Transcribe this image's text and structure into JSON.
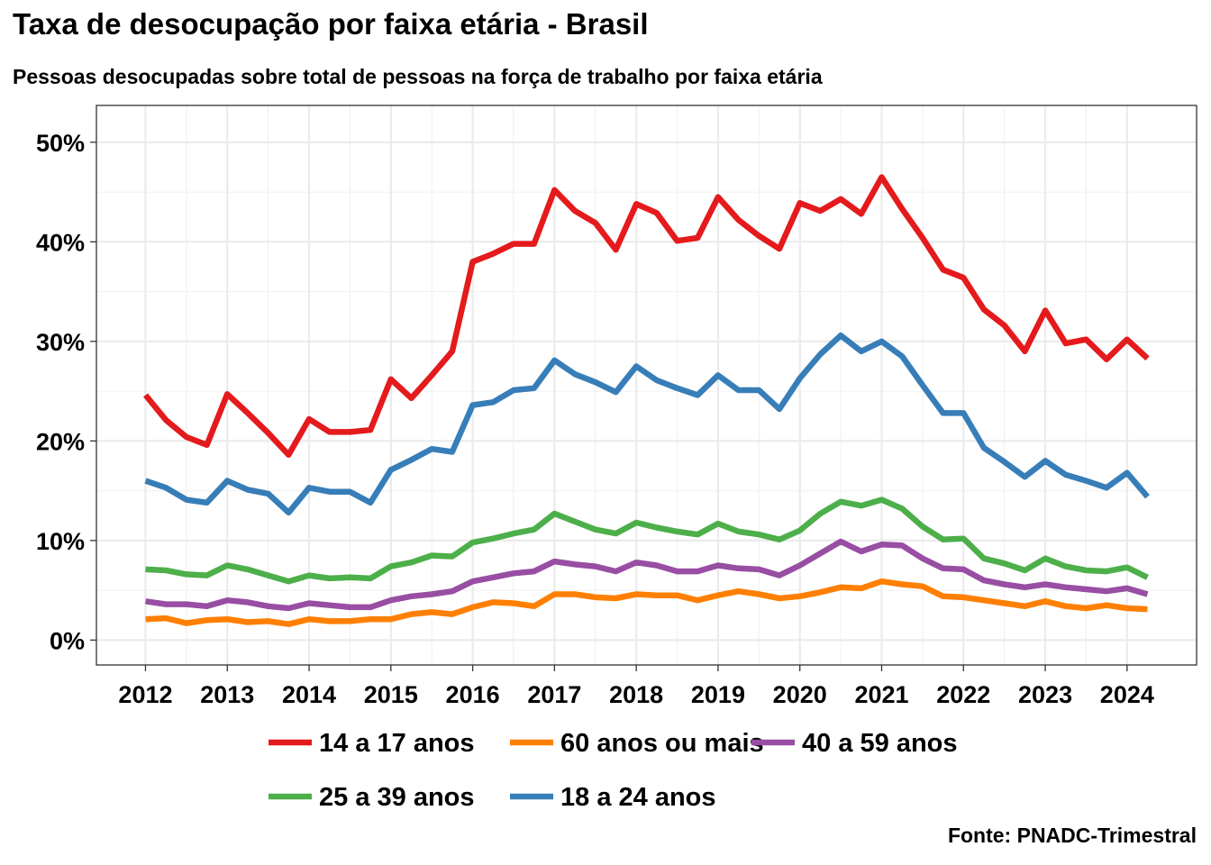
{
  "title": "Taxa de desocupação por faixa etária - Brasil",
  "subtitle": "Pessoas desocupadas sobre total de pessoas na força de trabalho por faixa etária",
  "caption": "Fonte: PNADC-Trimestral",
  "chart_data": {
    "type": "line",
    "title": "Taxa de desocupação por faixa etária - Brasil",
    "subtitle": "Pessoas desocupadas sobre total de pessoas na força de trabalho por faixa etária",
    "xlabel": "",
    "ylabel": "",
    "x_ticks": [
      "2012",
      "2013",
      "2014",
      "2015",
      "2016",
      "2017",
      "2018",
      "2019",
      "2020",
      "2021",
      "2022",
      "2023",
      "2024"
    ],
    "y_ticks": [
      "0%",
      "10%",
      "20%",
      "30%",
      "40%",
      "50%"
    ],
    "xlim": [
      2011.4,
      2024.85
    ],
    "ylim": [
      -2.5,
      53.7
    ],
    "grid": true,
    "legend_position": "bottom",
    "x": [
      2012.0,
      2012.25,
      2012.5,
      2012.75,
      2013.0,
      2013.25,
      2013.5,
      2013.75,
      2014.0,
      2014.25,
      2014.5,
      2014.75,
      2015.0,
      2015.25,
      2015.5,
      2015.75,
      2016.0,
      2016.25,
      2016.5,
      2016.75,
      2017.0,
      2017.25,
      2017.5,
      2017.75,
      2018.0,
      2018.25,
      2018.5,
      2018.75,
      2019.0,
      2019.25,
      2019.5,
      2019.75,
      2020.0,
      2020.25,
      2020.5,
      2020.75,
      2021.0,
      2021.25,
      2021.5,
      2021.75,
      2022.0,
      2022.25,
      2022.5,
      2022.75,
      2023.0,
      2023.25,
      2023.5,
      2023.75,
      2024.0,
      2024.25
    ],
    "series": [
      {
        "name": "14 a 17 anos",
        "color": "#e41a1c",
        "values": [
          24.6,
          22.1,
          20.4,
          19.6,
          24.7,
          22.8,
          20.8,
          18.6,
          22.2,
          20.9,
          20.9,
          21.1,
          26.2,
          24.3,
          26.6,
          29.0,
          38.0,
          38.8,
          39.8,
          39.8,
          45.2,
          43.1,
          41.9,
          39.2,
          43.8,
          42.9,
          40.1,
          40.4,
          44.5,
          42.2,
          40.6,
          39.3,
          43.9,
          43.1,
          44.3,
          42.8,
          46.5,
          43.3,
          40.4,
          37.2,
          36.4,
          33.2,
          31.6,
          29.0,
          33.1,
          29.8,
          30.2,
          28.2,
          30.2,
          28.3
        ]
      },
      {
        "name": "25 a 39 anos",
        "color": "#4daf4a",
        "values": [
          7.1,
          7.0,
          6.6,
          6.5,
          7.5,
          7.1,
          6.5,
          5.9,
          6.5,
          6.2,
          6.3,
          6.2,
          7.4,
          7.8,
          8.5,
          8.4,
          9.8,
          10.2,
          10.7,
          11.1,
          12.7,
          11.9,
          11.1,
          10.7,
          11.8,
          11.3,
          10.9,
          10.6,
          11.7,
          10.9,
          10.6,
          10.1,
          11.0,
          12.7,
          13.9,
          13.5,
          14.1,
          13.2,
          11.4,
          10.1,
          10.2,
          8.2,
          7.7,
          7.0,
          8.2,
          7.4,
          7.0,
          6.9,
          7.3,
          6.3
        ]
      },
      {
        "name": "60 anos ou mais",
        "color": "#ff7f00",
        "values": [
          2.1,
          2.2,
          1.7,
          2.0,
          2.1,
          1.8,
          1.9,
          1.6,
          2.1,
          1.9,
          1.9,
          2.1,
          2.1,
          2.6,
          2.8,
          2.6,
          3.3,
          3.8,
          3.7,
          3.4,
          4.6,
          4.6,
          4.3,
          4.2,
          4.6,
          4.5,
          4.5,
          4.0,
          4.5,
          4.9,
          4.6,
          4.2,
          4.4,
          4.8,
          5.3,
          5.2,
          5.9,
          5.6,
          5.4,
          4.4,
          4.3,
          4.0,
          3.7,
          3.4,
          3.9,
          3.4,
          3.2,
          3.5,
          3.2,
          3.1
        ]
      },
      {
        "name": "18 a 24 anos",
        "color": "#377eb8",
        "values": [
          16.0,
          15.3,
          14.1,
          13.8,
          16.0,
          15.1,
          14.7,
          12.8,
          15.3,
          14.9,
          14.9,
          13.8,
          17.1,
          18.1,
          19.2,
          18.9,
          23.6,
          23.9,
          25.1,
          25.3,
          28.1,
          26.7,
          25.9,
          24.9,
          27.5,
          26.1,
          25.3,
          24.6,
          26.6,
          25.1,
          25.1,
          23.2,
          26.3,
          28.7,
          30.6,
          29.0,
          30.0,
          28.5,
          25.6,
          22.8,
          22.8,
          19.3,
          17.9,
          16.4,
          18.0,
          16.6,
          16.0,
          15.3,
          16.8,
          14.4
        ]
      },
      {
        "name": "40 a 59 anos",
        "color": "#984ea3",
        "values": [
          3.9,
          3.6,
          3.6,
          3.4,
          4.0,
          3.8,
          3.4,
          3.2,
          3.7,
          3.5,
          3.3,
          3.3,
          4.0,
          4.4,
          4.6,
          4.9,
          5.9,
          6.3,
          6.7,
          6.9,
          7.9,
          7.6,
          7.4,
          6.9,
          7.8,
          7.5,
          6.9,
          6.9,
          7.5,
          7.2,
          7.1,
          6.5,
          7.5,
          8.7,
          9.9,
          8.9,
          9.6,
          9.5,
          8.2,
          7.2,
          7.1,
          6.0,
          5.6,
          5.3,
          5.6,
          5.3,
          5.1,
          4.9,
          5.2,
          4.6
        ]
      }
    ]
  }
}
